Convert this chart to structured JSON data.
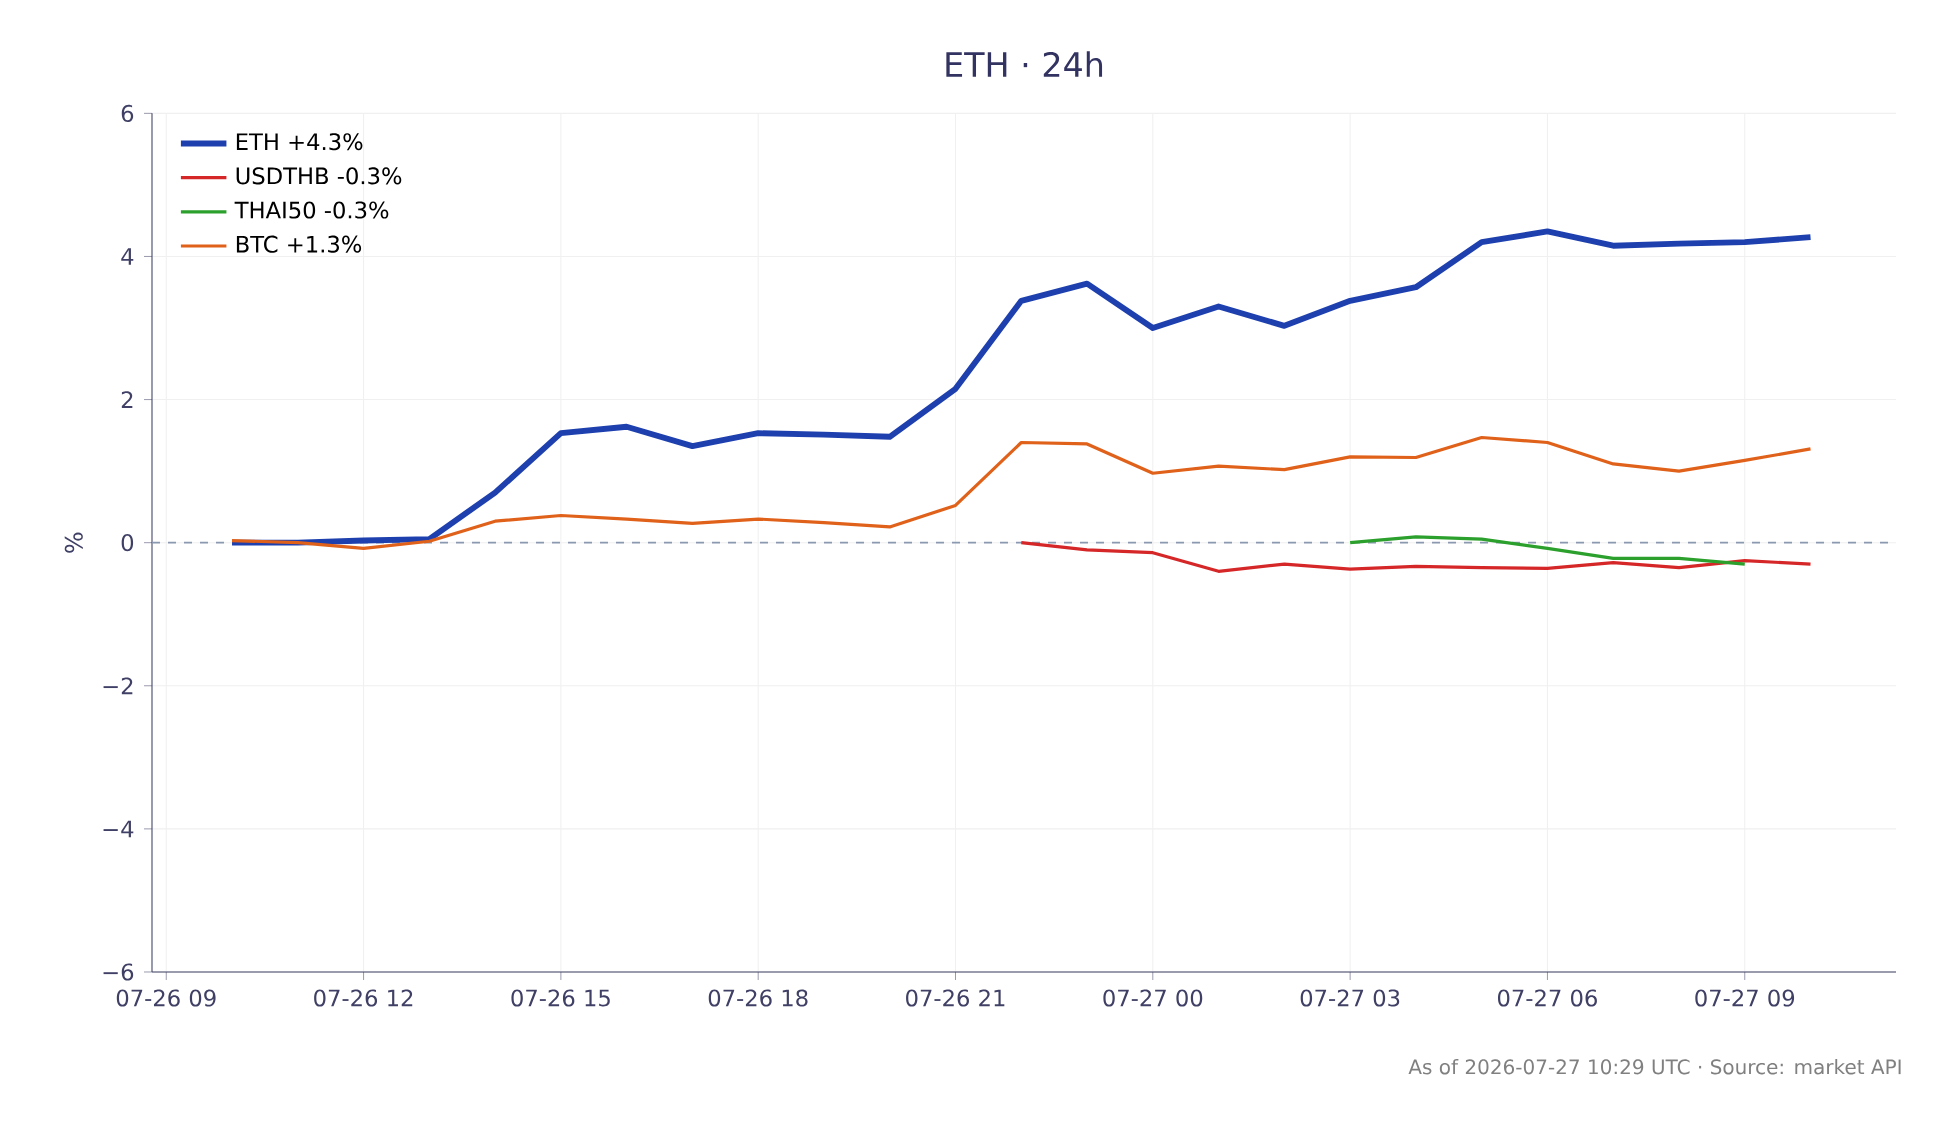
{
  "chart_data": {
    "type": "line",
    "title": "ETH · 24h",
    "ylabel": "%",
    "x": [
      "2026-07-26T10:00",
      "2026-07-26T11:00",
      "2026-07-26T12:00",
      "2026-07-26T13:00",
      "2026-07-26T14:00",
      "2026-07-26T15:00",
      "2026-07-26T16:00",
      "2026-07-26T17:00",
      "2026-07-26T18:00",
      "2026-07-26T19:00",
      "2026-07-26T20:00",
      "2026-07-26T21:00",
      "2026-07-26T22:00",
      "2026-07-26T23:00",
      "2026-07-27T00:00",
      "2026-07-27T01:00",
      "2026-07-27T02:00",
      "2026-07-27T03:00",
      "2026-07-27T04:00",
      "2026-07-27T05:00",
      "2026-07-27T06:00",
      "2026-07-27T07:00",
      "2026-07-27T08:00",
      "2026-07-27T09:00",
      "2026-07-27T10:00"
    ],
    "series": [
      {
        "name": "ETH +4.3%",
        "color": "#1e40af",
        "values": [
          0.0,
          0.0,
          0.03,
          0.05,
          0.7,
          1.53,
          1.62,
          1.35,
          1.53,
          1.51,
          1.48,
          2.15,
          3.38,
          3.62,
          3.0,
          3.3,
          3.03,
          3.38,
          3.57,
          4.2,
          4.35,
          4.15,
          4.18,
          4.2,
          4.27
        ]
      },
      {
        "name": "USDTHB -0.3%",
        "color": "#d62728",
        "values": [
          null,
          null,
          null,
          null,
          null,
          null,
          null,
          null,
          null,
          null,
          null,
          null,
          0.0,
          -0.1,
          -0.14,
          -0.4,
          -0.3,
          -0.37,
          -0.33,
          -0.35,
          -0.36,
          -0.28,
          -0.35,
          -0.25,
          -0.3
        ]
      },
      {
        "name": "THAI50 -0.3%",
        "color": "#2ca02c",
        "values": [
          null,
          null,
          null,
          null,
          null,
          null,
          null,
          null,
          null,
          null,
          null,
          null,
          null,
          null,
          null,
          null,
          null,
          0.0,
          0.08,
          0.05,
          -0.08,
          -0.22,
          -0.22,
          -0.3,
          null
        ]
      },
      {
        "name": "BTC +1.3%",
        "color": "#e0611a",
        "values": [
          0.03,
          0.0,
          -0.08,
          0.02,
          0.3,
          0.38,
          0.33,
          0.27,
          0.33,
          0.28,
          0.22,
          0.52,
          1.4,
          1.38,
          0.97,
          1.07,
          1.02,
          1.2,
          1.19,
          1.47,
          1.4,
          1.1,
          1.0,
          1.15,
          1.31
        ]
      }
    ],
    "xlim": [
      "2026-07-26T08:47",
      "2026-07-27T11:18"
    ],
    "xticks": [
      {
        "value": "2026-07-26T09:00",
        "label": "07-26 09"
      },
      {
        "value": "2026-07-26T12:00",
        "label": "07-26 12"
      },
      {
        "value": "2026-07-26T15:00",
        "label": "07-26 15"
      },
      {
        "value": "2026-07-26T18:00",
        "label": "07-26 18"
      },
      {
        "value": "2026-07-26T21:00",
        "label": "07-26 21"
      },
      {
        "value": "2026-07-27T00:00",
        "label": "07-27 00"
      },
      {
        "value": "2026-07-27T03:00",
        "label": "07-27 03"
      },
      {
        "value": "2026-07-27T06:00",
        "label": "07-27 06"
      },
      {
        "value": "2026-07-27T09:00",
        "label": "07-27 09"
      }
    ],
    "ylim": [
      -6,
      6
    ],
    "yticks": [
      {
        "value": -6,
        "label": "−6"
      },
      {
        "value": -4,
        "label": "−4"
      },
      {
        "value": -2,
        "label": "−2"
      },
      {
        "value": 0,
        "label": "0"
      },
      2,
      4,
      6
    ],
    "ref_lines": [
      {
        "axis": "y",
        "value": 0,
        "color": "#8a99b0",
        "line_style": "dashed"
      }
    ],
    "grid": true,
    "legend": "top left",
    "marker": "none",
    "line_style": "solid",
    "annotations": [
      "As of 2026-07-27 10:29 UTC · Source: market API"
    ]
  }
}
